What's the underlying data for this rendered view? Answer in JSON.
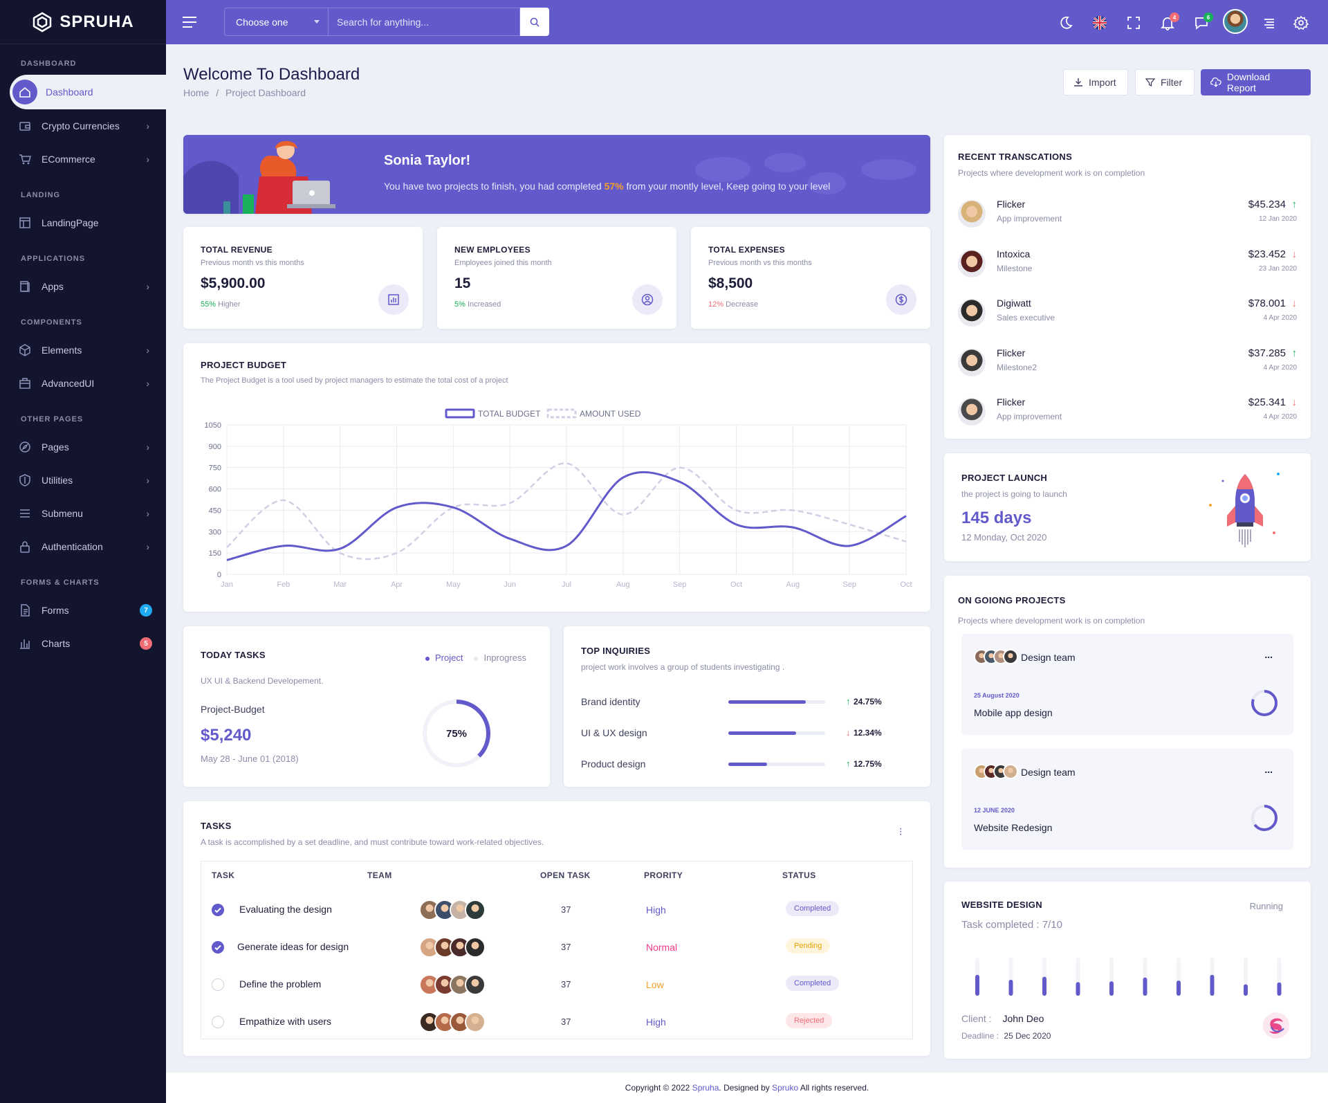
{
  "brand": {
    "name": "SPRUHA"
  },
  "sidebar": {
    "sections": [
      "DASHBOARD",
      "LANDING",
      "APPLICATIONS",
      "COMPONENTS",
      "OTHER PAGES",
      "FORMS & CHARTS"
    ],
    "items": [
      {
        "label": "Dashboard",
        "icon": "home-icon"
      },
      {
        "label": "Crypto Currencies",
        "icon": "wallet-icon"
      },
      {
        "label": "ECommerce",
        "icon": "cart-icon"
      },
      {
        "label": "LandingPage",
        "icon": "layout-icon"
      },
      {
        "label": "Apps",
        "icon": "book-icon"
      },
      {
        "label": "Elements",
        "icon": "cube-icon"
      },
      {
        "label": "AdvancedUI",
        "icon": "briefcase-icon"
      },
      {
        "label": "Pages",
        "icon": "compass-icon"
      },
      {
        "label": "Utilities",
        "icon": "shield-icon"
      },
      {
        "label": "Submenu",
        "icon": "menu-icon"
      },
      {
        "label": "Authentication",
        "icon": "lock-icon"
      },
      {
        "label": "Forms",
        "icon": "file-icon",
        "badge": "7",
        "badge_color": "#1eaaf1"
      },
      {
        "label": "Charts",
        "icon": "bar-chart-icon",
        "badge": "5",
        "badge_color": "#f16d75"
      }
    ]
  },
  "topbar": {
    "select_value": "Choose one",
    "search_placeholder": "Search for anything...",
    "notif_count": "4",
    "message_count": "6"
  },
  "header": {
    "title": "Welcome To Dashboard",
    "breadcrumb_home": "Home",
    "breadcrumb_current": "Project Dashboard",
    "import": "Import",
    "filter": "Filter",
    "download": "Download Report"
  },
  "banner": {
    "name": "Sonia Taylor!",
    "text_a": "You have two projects to finish, you had completed ",
    "percent": "57%",
    "text_b": " from your montly level, Keep going to your level"
  },
  "stats": [
    {
      "title": "TOTAL REVENUE",
      "sub": "Previous month vs this months",
      "value": "$5,900.00",
      "pct": "55%",
      "change": " Higher",
      "pct_color": "#19b159",
      "icon": "report-icon"
    },
    {
      "title": "NEW EMPLOYEES",
      "sub": "Employees joined this month",
      "value": "15",
      "pct": "5%",
      "change": " Increased",
      "pct_color": "#19b159",
      "icon": "user-icon"
    },
    {
      "title": "TOTAL EXPENSES",
      "sub": "Previous month vs this months",
      "value": "$8,500",
      "pct": "12%",
      "change": " Decrease",
      "pct_color": "#f16d75",
      "icon": "dollar-icon"
    }
  ],
  "budget": {
    "title": "PROJECT BUDGET",
    "sub": "The Project Budget is a tool used by project managers to estimate the total cost of a project"
  },
  "chart_data": {
    "type": "line",
    "title": "PROJECT BUDGET",
    "legend": [
      "TOTAL BUDGET",
      "AMOUNT USED"
    ],
    "legend_position": "top",
    "categories": [
      "Jan",
      "Feb",
      "Mar",
      "Apr",
      "May",
      "Jun",
      "Jul",
      "Aug",
      "Sep",
      "Oct",
      "Aug",
      "Sep",
      "Oct"
    ],
    "ylim": [
      0,
      1050
    ],
    "yticks": [
      0,
      150,
      300,
      450,
      600,
      750,
      900,
      1050
    ],
    "grid": true,
    "series": [
      {
        "name": "TOTAL BUDGET",
        "color": "#6259ca",
        "values": [
          100,
          200,
          180,
          470,
          470,
          250,
          200,
          680,
          650,
          350,
          330,
          200,
          410
        ]
      },
      {
        "name": "AMOUNT USED",
        "color": "#cfd0e4",
        "values": [
          190,
          520,
          150,
          150,
          470,
          500,
          780,
          420,
          750,
          450,
          450,
          350,
          230
        ]
      }
    ]
  },
  "tasks_today": {
    "title": "TODAY TASKS",
    "legend_project": "Project",
    "legend_progress": "Inprogress",
    "sub": "UX UI & Backend Developement.",
    "label": "Project-Budget",
    "value": "$5,240",
    "dates": "May 28 - June 01 (2018)",
    "percent_label": "75%",
    "percent": 0.75
  },
  "inquiries": {
    "title": "TOP INQUIRIES",
    "sub": "project work involves a group of students investigating .",
    "rows": [
      {
        "label": "Brand identity",
        "fill": 0.8,
        "arrow": "↑",
        "pct": "24.75%",
        "arrow_color": "#19b159"
      },
      {
        "label": "UI & UX design",
        "fill": 0.7,
        "arrow": "↓",
        "pct": "12.34%",
        "arrow_color": "#f16d75"
      },
      {
        "label": "Product design",
        "fill": 0.4,
        "arrow": "↑",
        "pct": "12.75%",
        "arrow_color": "#19b159"
      }
    ]
  },
  "tasks": {
    "title": "TASKS",
    "sub": "A task is accomplished by a set deadline, and must contribute toward work-related objectives.",
    "headers": [
      "TASK",
      "TEAM",
      "OPEN TASK",
      "PRORITY",
      "STATUS"
    ],
    "rows": [
      {
        "task": "Evaluating the design",
        "done": true,
        "open": "37",
        "priority": "High",
        "priority_color": "#6259ca",
        "status": "Completed",
        "status_bg": "#eceaf9",
        "status_color": "#6259ca"
      },
      {
        "task": "Generate ideas for design",
        "done": true,
        "open": "37",
        "priority": "Normal",
        "priority_color": "#f1388b",
        "status": "Pending",
        "status_bg": "#fff5dc",
        "status_color": "#e8a100"
      },
      {
        "task": "Define the problem",
        "done": false,
        "open": "37",
        "priority": "Low",
        "priority_color": "#f7a02b",
        "status": "Completed",
        "status_bg": "#eceaf9",
        "status_color": "#6259ca"
      },
      {
        "task": "Empathize with users",
        "done": false,
        "open": "37",
        "priority": "High",
        "priority_color": "#6259ca",
        "status": "Rejected",
        "status_bg": "#fde6e8",
        "status_color": "#f16d75"
      }
    ]
  },
  "recent": {
    "title": "RECENT TRANSCATIONS",
    "sub": "Projects where development work is on completion",
    "rows": [
      {
        "name": "Flicker",
        "desc": "App improvement",
        "amount": "$45.234",
        "date": "12 Jan 2020",
        "up": true
      },
      {
        "name": "Intoxica",
        "desc": "Milestone",
        "amount": "$23.452",
        "date": "23 Jan 2020",
        "up": false
      },
      {
        "name": "Digiwatt",
        "desc": "Sales executive",
        "amount": "$78.001",
        "date": "4 Apr 2020",
        "up": false
      },
      {
        "name": "Flicker",
        "desc": "Milestone2",
        "amount": "$37.285",
        "date": "4 Apr 2020",
        "up": true
      },
      {
        "name": "Flicker",
        "desc": "App improvement",
        "amount": "$25.341",
        "date": "4 Apr 2020",
        "up": false
      }
    ]
  },
  "launch": {
    "title": "PROJECT LAUNCH",
    "sub": "the project is going to launch",
    "days": "145 days",
    "date": "12 Monday, Oct 2020"
  },
  "ongoing": {
    "title": "ON GOIONG PROJECTS",
    "sub": "Projects where development work is on completion",
    "items": [
      {
        "team": "Design team",
        "date": "25 August 2020",
        "name": "Mobile app design",
        "more": "...",
        "progress": 0.8
      },
      {
        "team": "Design team",
        "date": "12 JUNE 2020",
        "name": "Website Redesign",
        "more": "...",
        "progress": 0.65
      }
    ]
  },
  "website": {
    "title": "WEBSITE DESIGN",
    "status": "Running",
    "completed": "Task completed : 7/10",
    "client_label": "Client :",
    "client": "John Deo",
    "deadline_label": "Deadline :",
    "deadline": "25 Dec 2020",
    "bars": [
      0.55,
      0.42,
      0.5,
      0.36,
      0.38,
      0.48,
      0.4,
      0.55,
      0.3,
      0.35
    ]
  },
  "footer": {
    "a": "Copyright © 2022 ",
    "brand": "Spruha",
    "b": ". Designed by ",
    "designer": "Spruko",
    "c": " All rights reserved."
  },
  "colors": {
    "accent": "#6259ca",
    "sidebar": "#13142e",
    "orange": "#f7a02b"
  }
}
